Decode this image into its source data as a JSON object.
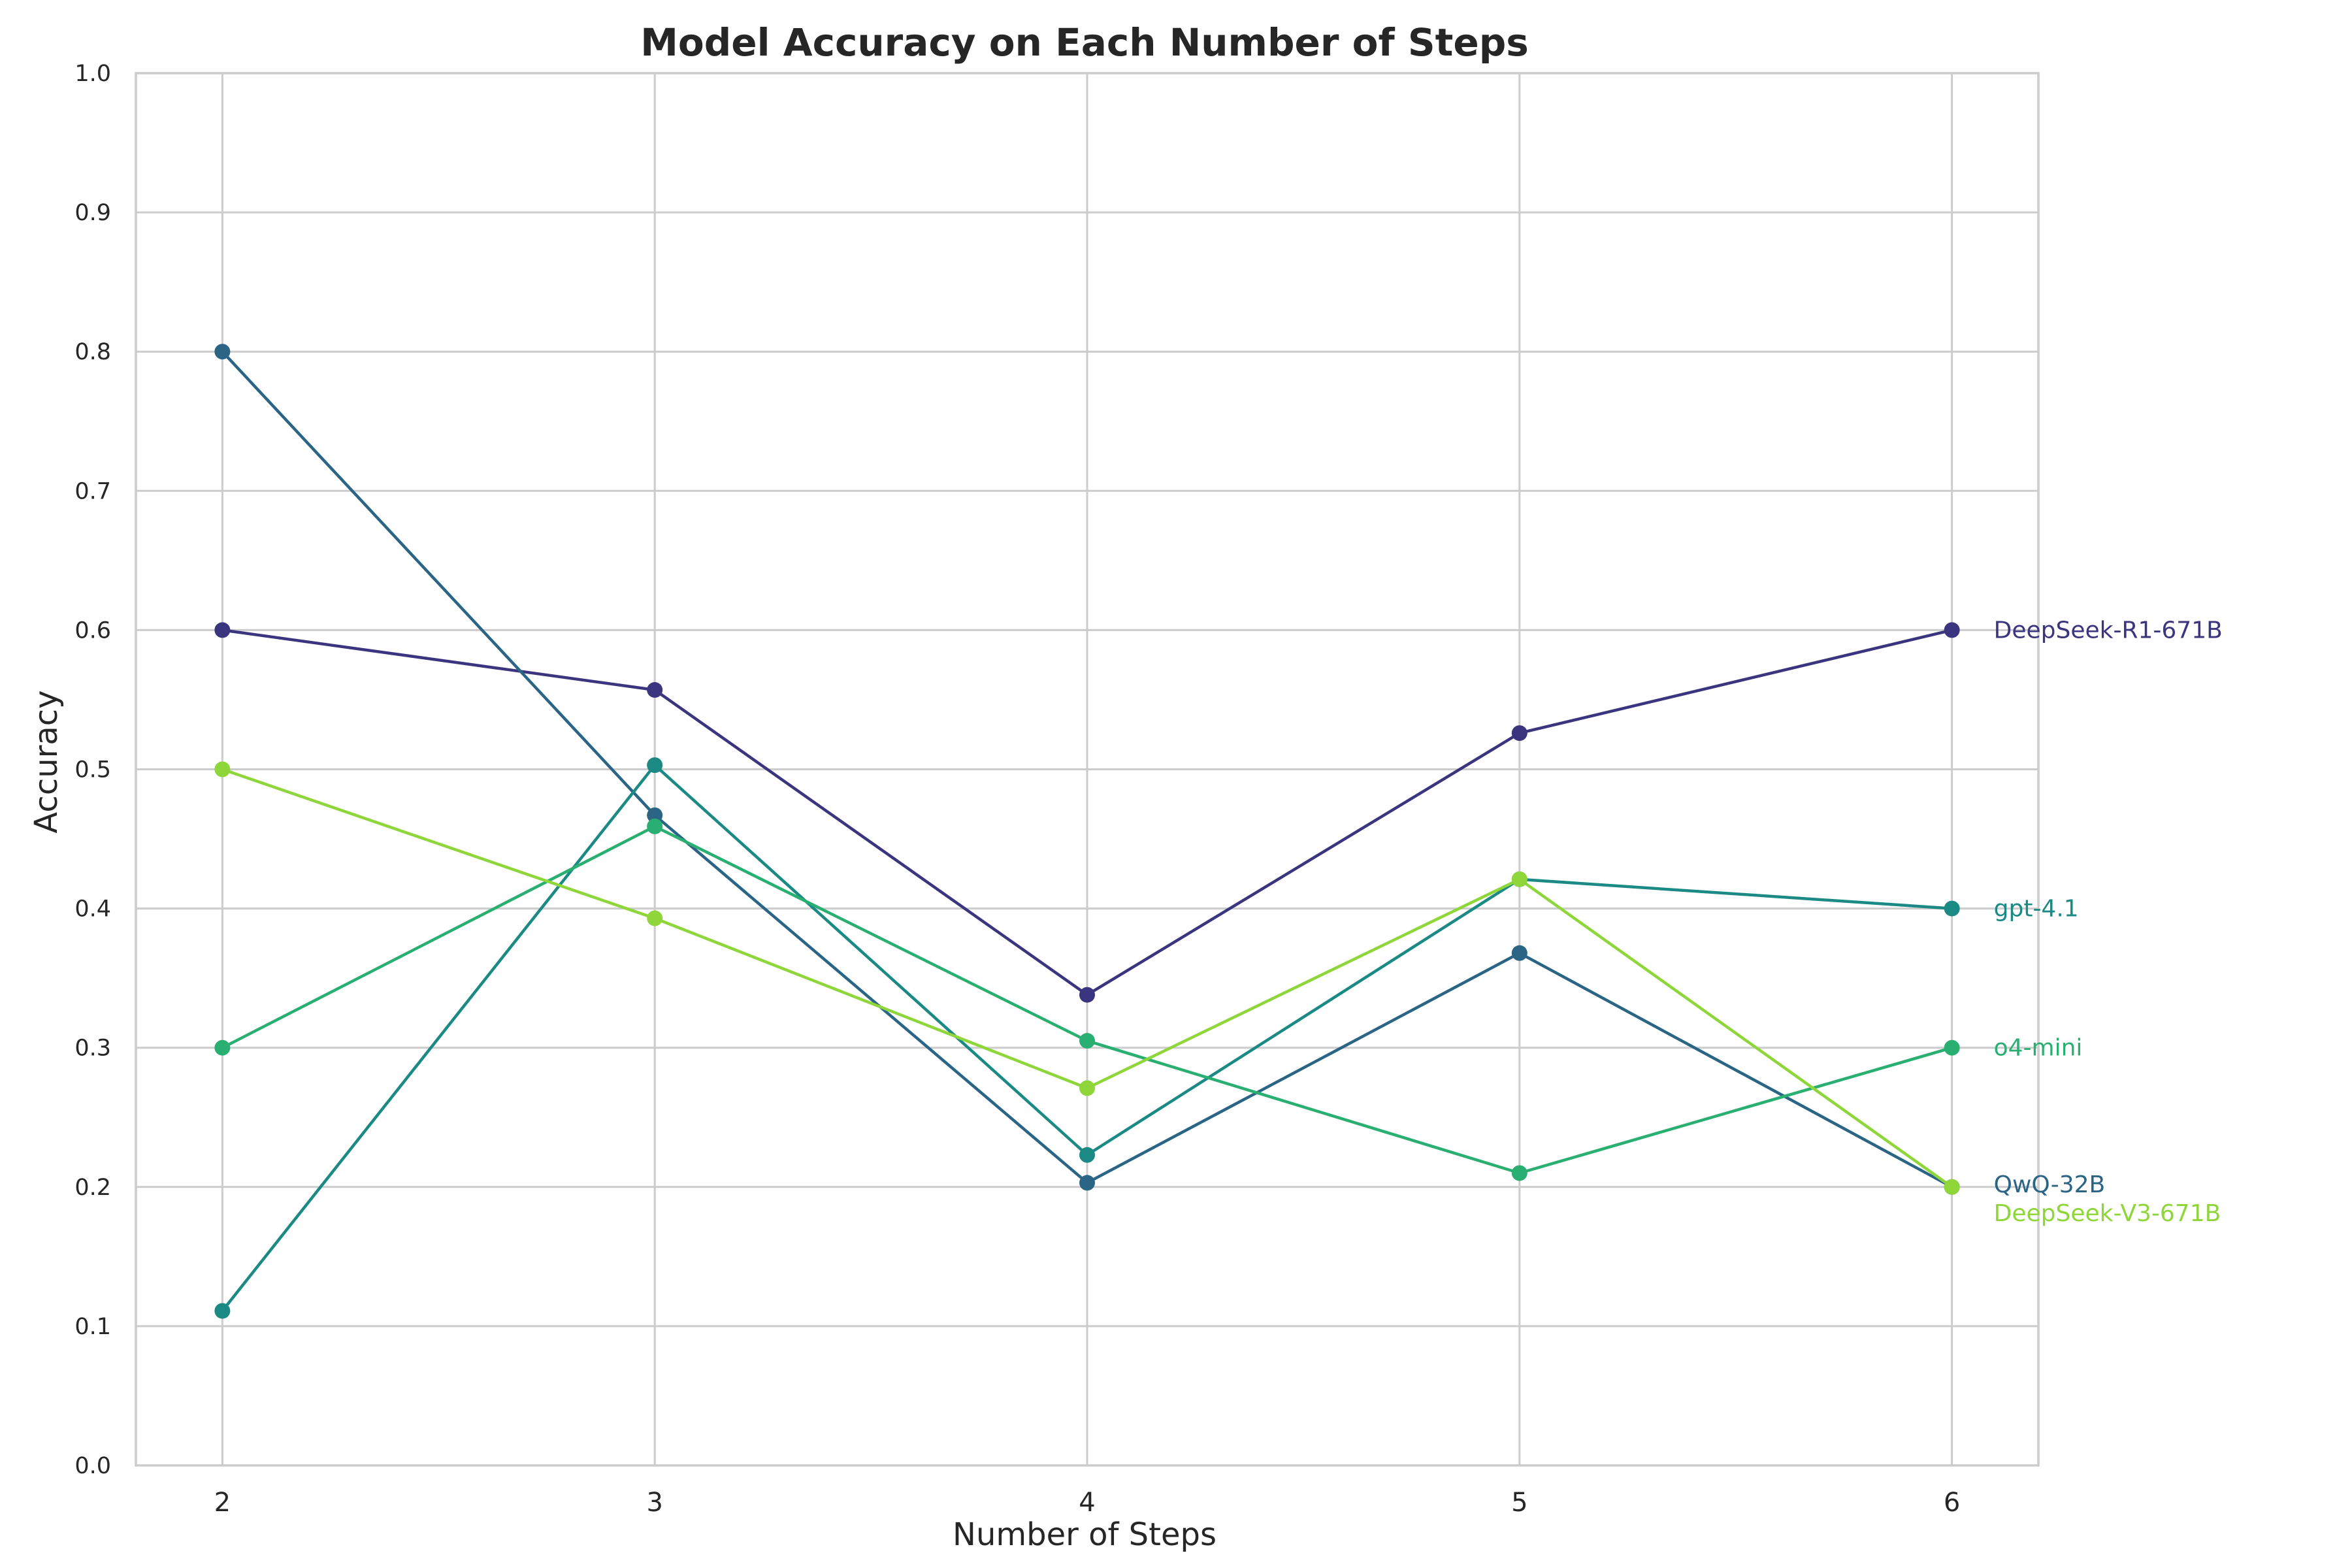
{
  "chart_data": {
    "type": "line",
    "title": "Model Accuracy on Each Number of Steps",
    "xlabel": "Number of Steps",
    "ylabel": "Accuracy",
    "x": [
      2,
      3,
      4,
      5,
      6
    ],
    "x_tick_labels": [
      "2",
      "3",
      "4",
      "5",
      "6"
    ],
    "ylim": [
      0,
      1
    ],
    "y_tick_labels": [
      "0.0",
      "0.1",
      "0.2",
      "0.3",
      "0.4",
      "0.5",
      "0.6",
      "0.7",
      "0.8",
      "0.9",
      "1.0"
    ],
    "grid": true,
    "legend": "none (series labels placed at right end of lines)",
    "series": [
      {
        "name": "DeepSeek-R1-671B",
        "color": "#3b3580",
        "values": [
          0.6,
          0.557,
          0.338,
          0.526,
          0.6
        ]
      },
      {
        "name": "QwQ-32B",
        "color": "#2a6586",
        "values": [
          0.8,
          0.467,
          0.203,
          0.368,
          0.2
        ]
      },
      {
        "name": "gpt-4.1",
        "color": "#1b8a84",
        "values": [
          0.111,
          0.503,
          0.223,
          0.421,
          0.4
        ]
      },
      {
        "name": "o4-mini",
        "color": "#2aaf72",
        "values": [
          0.3,
          0.459,
          0.305,
          0.21,
          0.3
        ]
      },
      {
        "name": "DeepSeek-V3-671B",
        "color": "#8fd63a",
        "values": [
          0.5,
          0.393,
          0.271,
          0.421,
          0.2
        ]
      }
    ]
  }
}
